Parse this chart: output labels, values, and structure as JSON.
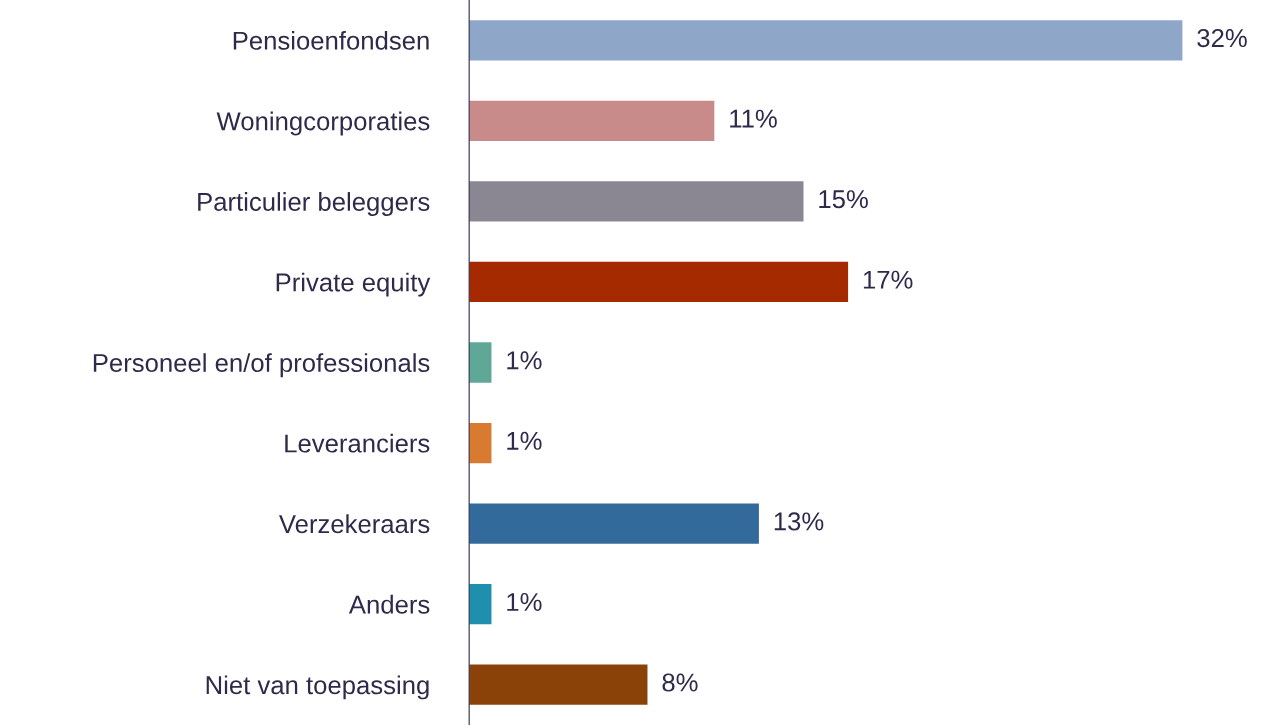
{
  "chart_data": {
    "type": "bar",
    "orientation": "horizontal",
    "categories": [
      "Pensioenfondsen",
      "Woningcorporaties",
      "Particulier beleggers",
      "Private equity",
      "Personeel en/of professionals",
      "Leveranciers",
      "Verzekeraars",
      "Anders",
      "Niet van toepassing"
    ],
    "values": [
      32,
      11,
      15,
      17,
      1,
      1,
      13,
      1,
      8
    ],
    "colors": [
      "#8ea7c9",
      "#c98a8a",
      "#8a8792",
      "#a52a00",
      "#5fa898",
      "#d87a30",
      "#336a9c",
      "#1f8fae",
      "#8b4208"
    ],
    "value_labels": [
      "32%",
      "11%",
      "15%",
      "17%",
      "1%",
      "1%",
      "13%",
      "1%",
      "8%"
    ],
    "grid": false,
    "legend": false
  }
}
